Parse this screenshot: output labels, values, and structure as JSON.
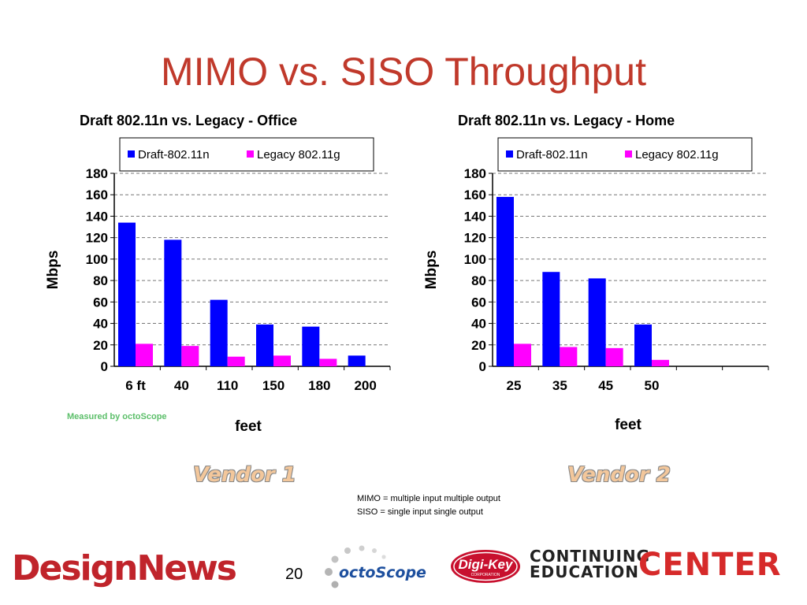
{
  "slide": {
    "title": "MIMO vs. SISO Throughput",
    "vendor1": "Vendor 1",
    "vendor2": "Vendor 2",
    "notes": [
      "MIMO = multiple input multiple output",
      "SISO = single input single output"
    ],
    "page_number": "20",
    "measured_by": "Measured by octoScope"
  },
  "logos": {
    "designnews": "DesignNews",
    "octoscope": "octoScope",
    "digikey": "Digi-Key",
    "digikey_sub": "CORPORATION",
    "cec_line1": "CONTINUING",
    "cec_line2": "EDUCATION",
    "cec_center": "CENTER"
  },
  "colors": {
    "title": "#c0392b",
    "draft_series": "#0000ff",
    "legacy_series": "#ff00ff"
  },
  "chart_data": [
    {
      "type": "bar",
      "title": "Draft 802.11n vs. Legacy - Office",
      "xlabel": "feet",
      "ylabel": "Mbps",
      "ylim": [
        0,
        180
      ],
      "yticks": [
        0,
        20,
        40,
        60,
        80,
        100,
        120,
        140,
        160,
        180
      ],
      "grid": true,
      "legend": "top",
      "categories": [
        "6 ft",
        "40",
        "110",
        "150",
        "180",
        "200"
      ],
      "series": [
        {
          "name": "Draft-802.11n",
          "values": [
            134,
            118,
            62,
            39,
            37,
            10
          ]
        },
        {
          "name": "Legacy 802.11g",
          "values": [
            21,
            19,
            9,
            10,
            7,
            0
          ]
        }
      ]
    },
    {
      "type": "bar",
      "title": "Draft 802.11n vs. Legacy - Home",
      "xlabel": "feet",
      "ylabel": "Mbps",
      "ylim": [
        0,
        180
      ],
      "yticks": [
        0,
        20,
        40,
        60,
        80,
        100,
        120,
        140,
        160,
        180
      ],
      "grid": true,
      "legend": "top",
      "categories": [
        "25",
        "35",
        "45",
        "50",
        "",
        ""
      ],
      "series": [
        {
          "name": "Draft-802.11n",
          "values": [
            158,
            88,
            82,
            39,
            null,
            null
          ]
        },
        {
          "name": "Legacy 802.11g",
          "values": [
            21,
            18,
            17,
            6,
            null,
            null
          ]
        }
      ]
    }
  ]
}
